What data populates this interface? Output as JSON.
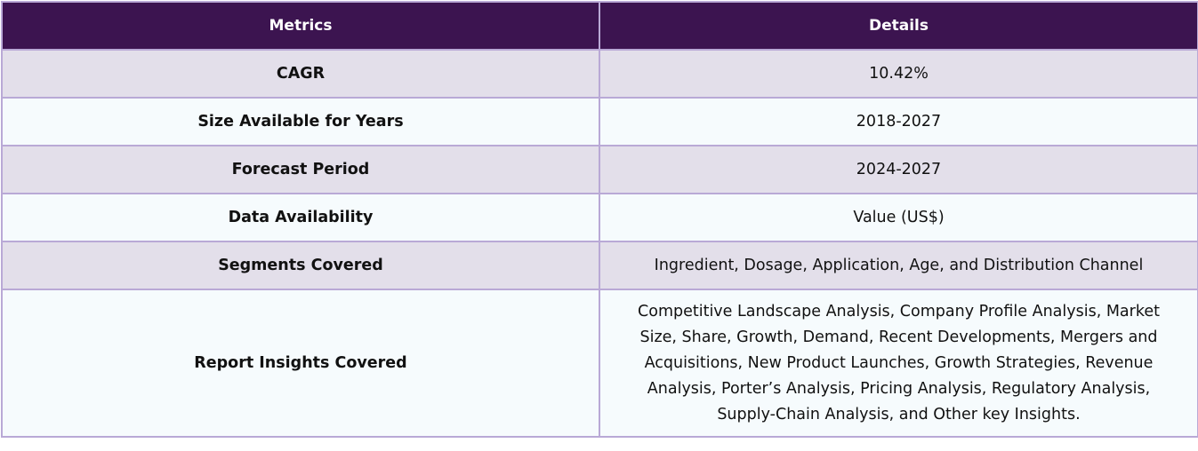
{
  "table": {
    "headers": {
      "metrics": "Metrics",
      "details": "Details"
    },
    "rows": [
      {
        "metric": "CAGR",
        "detail": "10.42%"
      },
      {
        "metric": "Size Available for Years",
        "detail": "2018-2027"
      },
      {
        "metric": "Forecast Period",
        "detail": "2024-2027"
      },
      {
        "metric": "Data Availability",
        "detail": "Value (US$)"
      },
      {
        "metric": "Segments Covered",
        "detail": "Ingredient, Dosage, Application, Age, and Distribution Channel"
      },
      {
        "metric": "Report Insights Covered",
        "detail": "Competitive Landscape Analysis, Company Profile Analysis, Market Size, Share, Growth, Demand, Recent Developments, Mergers and Acquisitions, New Product Launches, Growth Strategies, Revenue Analysis, Porter’s Analysis, Pricing Analysis, Regulatory Analysis, Supply-Chain Analysis, and Other key Insights."
      }
    ]
  },
  "colors": {
    "header_background": "#3c1450",
    "header_text": "#ffffff",
    "row_shaded": "#e3dfea",
    "row_light": "#f6fbfd",
    "border": "#b9a9d6"
  }
}
